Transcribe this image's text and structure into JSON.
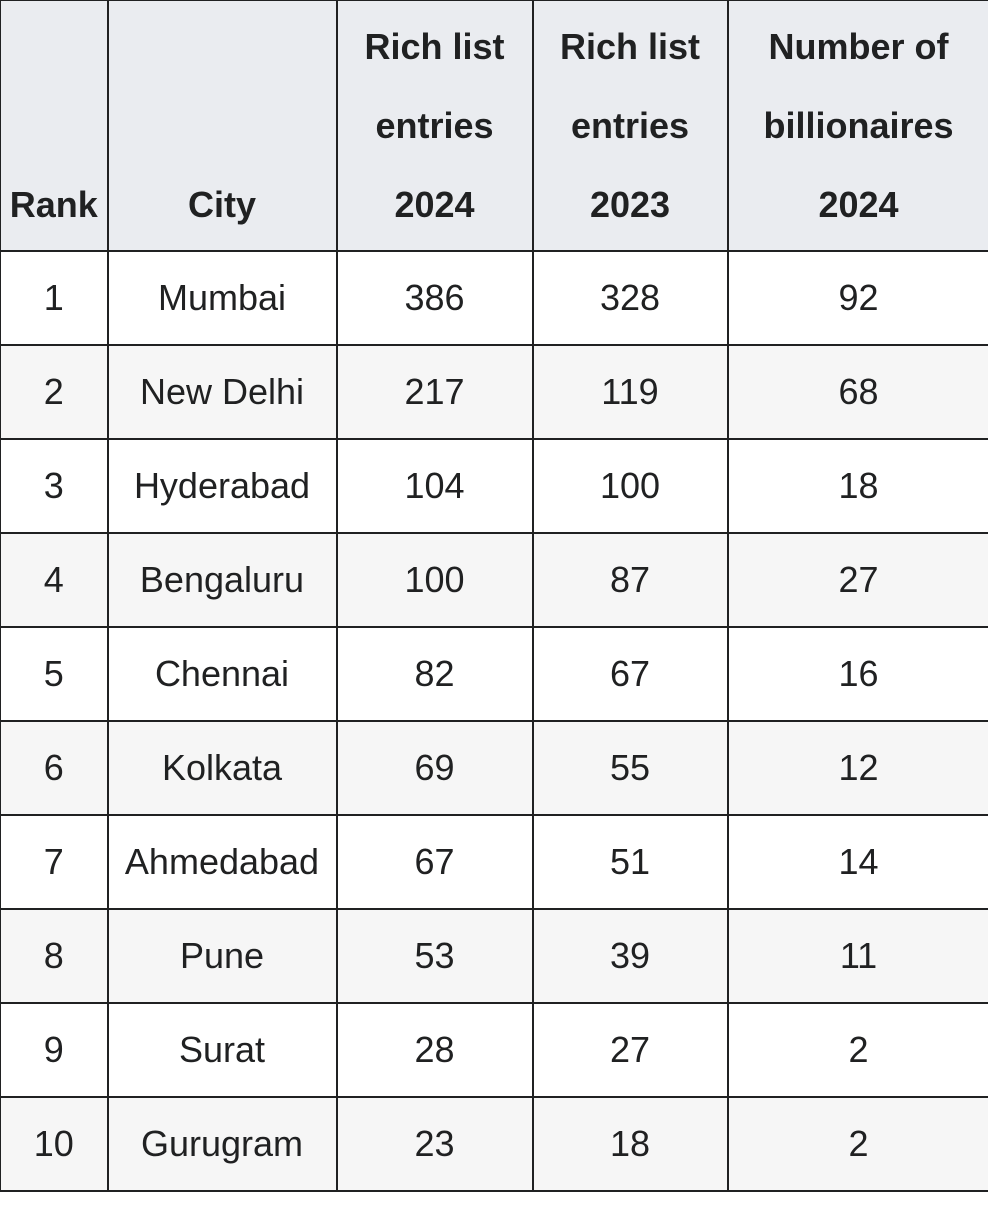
{
  "table": {
    "headers": {
      "rank": "Rank",
      "city": "City",
      "entries_2024": "Rich list entries 2024",
      "entries_2023": "Rich list entries 2023",
      "billionaires_2024": "Number of billionaires 2024"
    },
    "rows": [
      {
        "rank": "1",
        "city": "Mumbai",
        "entries_2024": "386",
        "entries_2023": "328",
        "billionaires_2024": "92"
      },
      {
        "rank": "2",
        "city": "New Delhi",
        "entries_2024": "217",
        "entries_2023": "119",
        "billionaires_2024": "68"
      },
      {
        "rank": "3",
        "city": "Hyderabad",
        "entries_2024": "104",
        "entries_2023": "100",
        "billionaires_2024": "18"
      },
      {
        "rank": "4",
        "city": "Bengaluru",
        "entries_2024": "100",
        "entries_2023": "87",
        "billionaires_2024": "27"
      },
      {
        "rank": "5",
        "city": "Chennai",
        "entries_2024": "82",
        "entries_2023": "67",
        "billionaires_2024": "16"
      },
      {
        "rank": "6",
        "city": "Kolkata",
        "entries_2024": "69",
        "entries_2023": "55",
        "billionaires_2024": "12"
      },
      {
        "rank": "7",
        "city": "Ahmedabad",
        "entries_2024": "67",
        "entries_2023": "51",
        "billionaires_2024": "14"
      },
      {
        "rank": "8",
        "city": "Pune",
        "entries_2024": "53",
        "entries_2023": "39",
        "billionaires_2024": "11"
      },
      {
        "rank": "9",
        "city": "Surat",
        "entries_2024": "28",
        "entries_2023": "27",
        "billionaires_2024": "2"
      },
      {
        "rank": "10",
        "city": "Gurugram",
        "entries_2024": "23",
        "entries_2023": "18",
        "billionaires_2024": "2"
      }
    ]
  }
}
